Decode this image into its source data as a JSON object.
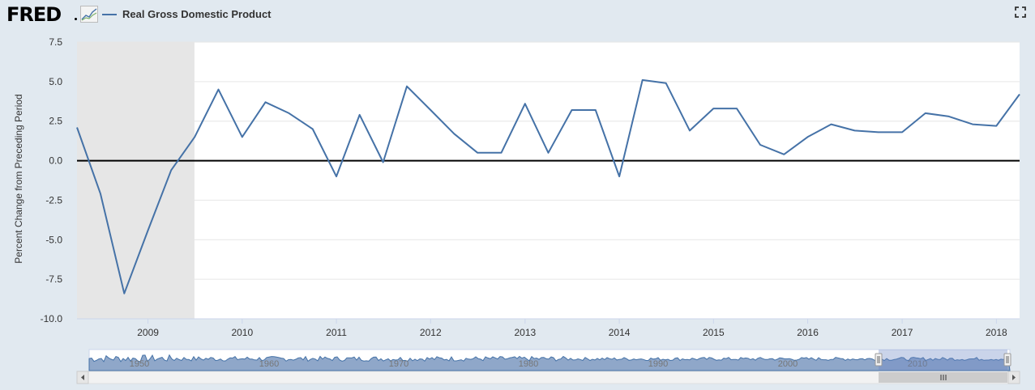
{
  "header": {
    "logo_text": "FRED",
    "logo_icon": "line-graph-icon",
    "series_label": "Real Gross Domestic Product",
    "fullscreen_icon": "expand-icon"
  },
  "colors": {
    "series": "#4572a7",
    "recession": "#e6e6e6",
    "background": "#e1e9f0",
    "plot": "#ffffff",
    "zero_line": "#000000",
    "navigator_fill": "#8fa7c9"
  },
  "chart_data": {
    "type": "line",
    "title": "",
    "ylabel": "Percent Change from Preceding Period",
    "xlabel": "",
    "ylim": [
      -10.0,
      7.5
    ],
    "yticks": [
      "7.5",
      "5.0",
      "2.5",
      "0.0",
      "-2.5",
      "-5.0",
      "-7.5",
      "-10.0"
    ],
    "xticks": [
      "2009",
      "2010",
      "2011",
      "2012",
      "2013",
      "2014",
      "2015",
      "2016",
      "2017",
      "2018"
    ],
    "xlim": [
      "2008-04-01",
      "2018-04-01"
    ],
    "grid": true,
    "legend": "top-left",
    "recession_shading": [
      [
        "2008-04-01",
        "2009-06-30"
      ]
    ],
    "series": [
      {
        "name": "Real Gross Domestic Product",
        "x": [
          "2008-04-01",
          "2008-07-01",
          "2008-10-01",
          "2009-01-01",
          "2009-04-01",
          "2009-07-01",
          "2009-10-01",
          "2010-01-01",
          "2010-04-01",
          "2010-07-01",
          "2010-10-01",
          "2011-01-01",
          "2011-04-01",
          "2011-07-01",
          "2011-10-01",
          "2012-01-01",
          "2012-04-01",
          "2012-07-01",
          "2012-10-01",
          "2013-01-01",
          "2013-04-01",
          "2013-07-01",
          "2013-10-01",
          "2014-01-01",
          "2014-04-01",
          "2014-07-01",
          "2014-10-01",
          "2015-01-01",
          "2015-04-01",
          "2015-07-01",
          "2015-10-01",
          "2016-01-01",
          "2016-04-01",
          "2016-07-01",
          "2016-10-01",
          "2017-01-01",
          "2017-04-01",
          "2017-07-01",
          "2017-10-01",
          "2018-01-01",
          "2018-04-01"
        ],
        "values": [
          2.1,
          -2.1,
          -8.4,
          -4.4,
          -0.6,
          1.5,
          4.5,
          1.5,
          3.7,
          3.0,
          2.0,
          -1.0,
          2.9,
          -0.1,
          4.7,
          3.2,
          1.7,
          0.5,
          0.5,
          3.6,
          0.5,
          3.2,
          3.2,
          -1.0,
          5.1,
          4.9,
          1.9,
          3.3,
          3.3,
          1.0,
          0.4,
          1.5,
          2.3,
          1.9,
          1.8,
          1.8,
          3.0,
          2.8,
          2.3,
          2.2,
          4.2
        ]
      }
    ],
    "navigator": {
      "labels": [
        "1950",
        "1960",
        "1970",
        "1980",
        "1990",
        "2000",
        "2010"
      ]
    }
  }
}
